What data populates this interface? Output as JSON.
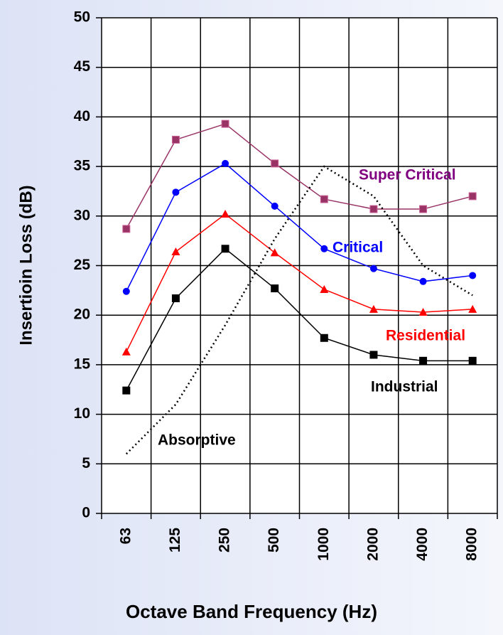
{
  "chart_data": {
    "type": "line",
    "x_label": "Octave Band Frequency (Hz)",
    "y_label": "Insertioin Loss (dB)",
    "categories": [
      "63",
      "125",
      "250",
      "500",
      "1000",
      "2000",
      "4000",
      "8000"
    ],
    "series": [
      {
        "name": "Super Critical",
        "color": "#993366",
        "label_color": "#800080",
        "marker": "square",
        "values": [
          28.7,
          37.7,
          39.3,
          35.3,
          31.7,
          30.7,
          30.7,
          32.0
        ]
      },
      {
        "name": "Critical",
        "color": "#0000ff",
        "label_color": "#0000ff",
        "marker": "circle",
        "values": [
          22.4,
          32.4,
          35.3,
          31.0,
          26.7,
          24.7,
          23.4,
          24.0
        ]
      },
      {
        "name": "Residential",
        "color": "#ff0000",
        "label_color": "#ff0000",
        "marker": "triangle",
        "values": [
          16.3,
          26.4,
          30.2,
          26.3,
          22.6,
          20.6,
          20.3,
          20.6
        ]
      },
      {
        "name": "Industrial",
        "color": "#000000",
        "label_color": "#000000",
        "marker": "square",
        "values": [
          12.4,
          21.7,
          26.7,
          22.7,
          17.7,
          16.0,
          15.4,
          15.4
        ]
      },
      {
        "name": "Absorptive",
        "color": "#000000",
        "label_color": "#000000",
        "marker": "none",
        "dashed": true,
        "values": [
          6.0,
          11.0,
          19.0,
          27.7,
          35.0,
          32.0,
          25.0,
          22.0
        ]
      }
    ],
    "ylim": [
      0,
      50
    ],
    "yticks": [
      0,
      5,
      10,
      15,
      20,
      25,
      30,
      35,
      40,
      45,
      50
    ],
    "grid": true
  }
}
